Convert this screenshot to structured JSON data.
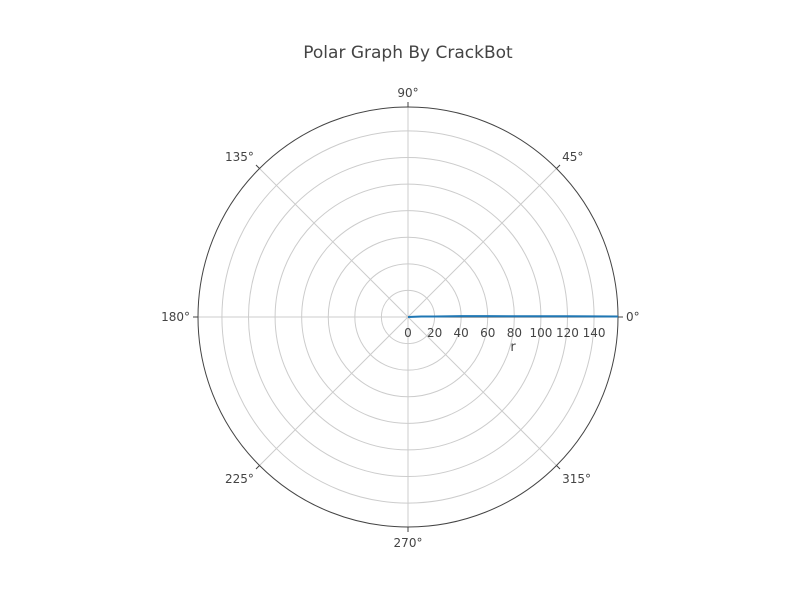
{
  "chart_data": {
    "type": "line",
    "subtype": "polar",
    "title": "Polar Graph By CrackBot",
    "radial_axis": {
      "title": "r",
      "range": [
        0,
        158
      ],
      "tick_values": [
        0,
        20,
        40,
        60,
        80,
        100,
        120,
        140
      ],
      "tick_labels": [
        "0",
        "20",
        "40",
        "60",
        "80",
        "100",
        "120",
        "140"
      ]
    },
    "angular_axis": {
      "unit": "degrees",
      "tick_values": [
        0,
        45,
        90,
        135,
        180,
        225,
        270,
        315
      ],
      "tick_labels": [
        "0°",
        "45°",
        "90°",
        "135°",
        "180°",
        "225°",
        "270°",
        "315°"
      ]
    },
    "grid": true,
    "series": [
      {
        "color": "#1f77b4",
        "r": [
          0,
          10,
          20,
          40,
          60,
          80,
          100,
          120,
          140,
          158
        ],
        "theta": [
          0,
          2,
          1,
          1,
          0.6,
          0.4,
          0.3,
          0.25,
          0.2,
          0.15
        ]
      }
    ]
  }
}
